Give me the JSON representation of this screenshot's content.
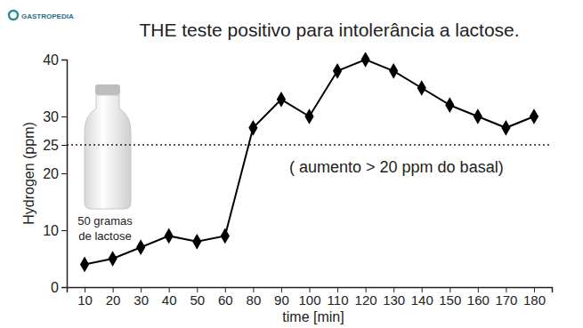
{
  "chart_data": {
    "type": "line",
    "title": "THE teste positivo para intolerância a lactose.",
    "logo": "GASTROPEDIA",
    "x_label": "time [min]",
    "y_label": "Hydrogen (ppm)",
    "categories": [
      10,
      20,
      30,
      40,
      50,
      60,
      80,
      90,
      100,
      110,
      120,
      130,
      140,
      150,
      160,
      170,
      180
    ],
    "values": [
      4,
      5,
      7,
      9,
      8,
      9,
      28,
      33,
      30,
      38,
      40,
      38,
      35,
      32,
      30,
      28,
      30
    ],
    "color": "#000000",
    "marker": "diamond",
    "line_style": "solid",
    "ylim": [
      0,
      40
    ],
    "yticks": [
      0,
      10,
      20,
      25,
      30,
      40
    ],
    "reference_line": {
      "value": 25,
      "line_style": "dotted",
      "label": "( aumento > 20 ppm do basal)"
    },
    "image_label": [
      "50 gramas",
      "de lactose"
    ]
  }
}
